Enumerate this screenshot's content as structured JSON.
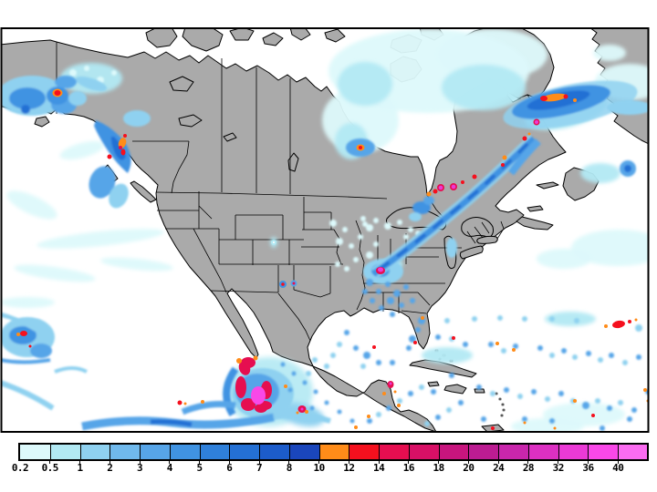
{
  "figure": {
    "title": "",
    "map": {
      "land_color": "#aaaaaa",
      "ocean_color": "#ffffff",
      "coastline_color": "#000000",
      "frame_color": "#000000",
      "precip_colors": {
        "trace": "#ddf9fb",
        "very_light": "#b2e9f3",
        "light": "#8fd1f0",
        "moderate": "#57a5e8",
        "moderate_heavy": "#4093e2",
        "heavy": "#2470d4",
        "very_heavy": "#1a46bc",
        "intense_orange": "#ff8c19",
        "intense_red": "#f5101e",
        "extreme_crimson": "#e60e50",
        "extreme_magenta": "#eb3ad6",
        "core_pink": "#f948e8"
      }
    }
  },
  "colorbar": {
    "labels": [
      "0.2",
      "0.5",
      "1",
      "2",
      "3",
      "4",
      "5",
      "6",
      "7",
      "8",
      "10",
      "12",
      "14",
      "16",
      "18",
      "20",
      "24",
      "28",
      "32",
      "36",
      "40"
    ],
    "colors": [
      "#ddf9fb",
      "#b2e9f3",
      "#8fd1f0",
      "#70b9ec",
      "#57a5e8",
      "#4093e2",
      "#2f80da",
      "#2470d4",
      "#1c5ccb",
      "#1a46bc",
      "#ff8c19",
      "#f5101e",
      "#e60e50",
      "#d81066",
      "#c8157e",
      "#bc1c92",
      "#c926ac",
      "#dc30c2",
      "#eb3ad6",
      "#f948e8",
      "#fb6cf1"
    ],
    "tick_color": "#000000",
    "label_color": "#000000"
  }
}
